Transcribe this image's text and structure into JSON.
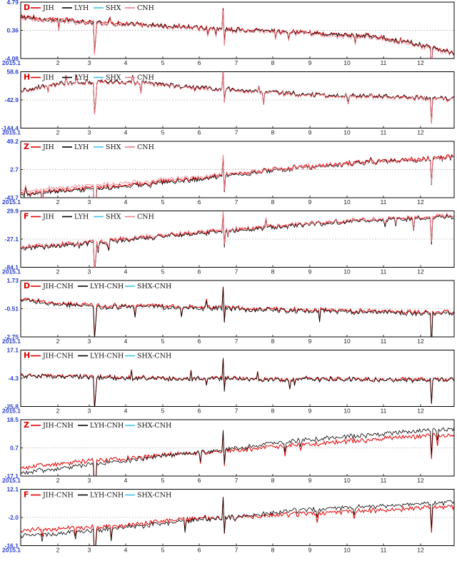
{
  "chart_data": [
    {
      "type": "line",
      "panel_label": "D",
      "x_tick_labels": [
        "2015.1",
        "2",
        "3",
        "4",
        "5",
        "6",
        "7",
        "8",
        "9",
        "10",
        "11",
        "12"
      ],
      "y_tick_labels": [
        "4.79",
        "0.36",
        "-4.08"
      ],
      "ylim": [
        -4.08,
        4.79
      ],
      "grid": "dashed-horizontal",
      "legend_placement": "top-left",
      "series": [
        {
          "name": "JIH",
          "color": "#e00000",
          "values": [
            2.6,
            2.2,
            2.0,
            1.9,
            1.7,
            1.5,
            1.2,
            1.1,
            0.9,
            0.7,
            0.6,
            0.4,
            0.3,
            0.1,
            -0.1,
            -0.2,
            -0.4,
            -0.5,
            -1.0,
            -1.6,
            -2.4,
            -3.2
          ]
        },
        {
          "name": "LYH",
          "color": "#000000",
          "values": [
            2.4,
            2.0,
            1.8,
            1.7,
            1.5,
            1.3,
            1.1,
            1.0,
            0.8,
            0.6,
            0.5,
            0.3,
            0.2,
            0.0,
            -0.2,
            -0.3,
            -0.5,
            -0.6,
            -1.1,
            -1.7,
            -2.5,
            -3.3
          ]
        },
        {
          "name": "SHX",
          "color": "#3ec3f0",
          "values": []
        },
        {
          "name": "CNH",
          "color": "#f07a85",
          "values": [
            2.2,
            1.9,
            1.7,
            1.5,
            1.4,
            1.2,
            1.0,
            0.8,
            0.7,
            0.5,
            0.3,
            0.2,
            0.0,
            -0.1,
            -0.3,
            -0.5,
            -0.7,
            -0.8,
            -1.3,
            -1.9,
            -2.7,
            -3.5
          ]
        }
      ]
    },
    {
      "type": "line",
      "panel_label": "H",
      "x_tick_labels": [
        "2015.1",
        "2",
        "3",
        "4",
        "5",
        "6",
        "7",
        "8",
        "9",
        "10",
        "11",
        "12"
      ],
      "y_tick_labels": [
        "58.6",
        "-42.9",
        "-144.4"
      ],
      "ylim": [
        -144.4,
        58.6
      ],
      "grid": "dashed-horizontal",
      "legend_placement": "top-left",
      "series": [
        {
          "name": "JIH",
          "color": "#e00000",
          "values": [
            -10,
            5,
            15,
            20,
            22,
            20,
            18,
            10,
            5,
            0,
            -5,
            -10,
            -15,
            -20,
            -25,
            -28,
            -30,
            -30,
            -33,
            -35,
            -38,
            -40
          ]
        },
        {
          "name": "LYH",
          "color": "#000000",
          "values": [
            -8,
            7,
            16,
            21,
            23,
            21,
            19,
            12,
            6,
            2,
            -4,
            -9,
            -14,
            -19,
            -24,
            -27,
            -29,
            -29,
            -32,
            -34,
            -37,
            -39
          ]
        },
        {
          "name": "SHX",
          "color": "#3ec3f0",
          "values": []
        },
        {
          "name": "CNH",
          "color": "#f07a85",
          "values": [
            -12,
            3,
            13,
            18,
            20,
            18,
            16,
            8,
            3,
            -2,
            -7,
            -12,
            -17,
            -22,
            -27,
            -30,
            -32,
            -32,
            -35,
            -37,
            -40,
            -42
          ]
        }
      ]
    },
    {
      "type": "line",
      "panel_label": "Z",
      "x_tick_labels": [
        "2015.1",
        "2",
        "3",
        "4",
        "5",
        "6",
        "7",
        "8",
        "9",
        "10",
        "11",
        "12"
      ],
      "y_tick_labels": [
        "49.2",
        "2.7",
        "-43.7"
      ],
      "ylim": [
        -43.7,
        49.2
      ],
      "grid": "dashed-horizontal",
      "legend_placement": "top-left",
      "series": [
        {
          "name": "JIH",
          "color": "#e00000",
          "values": [
            -37,
            -34,
            -31,
            -29,
            -26,
            -24,
            -20,
            -17,
            -14,
            -10,
            -6,
            -2,
            2,
            5,
            8,
            11,
            14,
            16,
            18,
            20,
            22,
            24
          ]
        },
        {
          "name": "LYH",
          "color": "#000000",
          "values": [
            -39,
            -36,
            -33,
            -31,
            -28,
            -26,
            -22,
            -19,
            -16,
            -12,
            -8,
            -4,
            0,
            3,
            6,
            9,
            12,
            14,
            16,
            18,
            20,
            22
          ]
        },
        {
          "name": "SHX",
          "color": "#3ec3f0",
          "values": []
        },
        {
          "name": "CNH",
          "color": "#f07a85",
          "values": [
            -33,
            -30,
            -27,
            -25,
            -22,
            -20,
            -17,
            -14,
            -11,
            -8,
            -5,
            -2,
            1,
            4,
            7,
            10,
            12,
            14,
            16,
            18,
            20,
            22
          ]
        }
      ]
    },
    {
      "type": "line",
      "panel_label": "F",
      "x_tick_labels": [
        "2015.1",
        "2",
        "3",
        "4",
        "5",
        "6",
        "7",
        "8",
        "9",
        "10",
        "11",
        "12"
      ],
      "y_tick_labels": [
        "29.9",
        "-27.1",
        "-84.1"
      ],
      "ylim": [
        -84.1,
        29.9
      ],
      "grid": "dashed-horizontal",
      "legend_placement": "top-left",
      "series": [
        {
          "name": "JIH",
          "color": "#e00000",
          "values": [
            -45,
            -42,
            -38,
            -35,
            -32,
            -28,
            -24,
            -20,
            -16,
            -12,
            -8,
            -5,
            -2,
            1,
            4,
            7,
            10,
            12,
            14,
            16,
            18,
            20
          ]
        },
        {
          "name": "LYH",
          "color": "#000000",
          "values": [
            -47,
            -44,
            -40,
            -37,
            -34,
            -30,
            -26,
            -22,
            -18,
            -14,
            -10,
            -7,
            -4,
            -1,
            2,
            5,
            8,
            10,
            12,
            14,
            16,
            18
          ]
        },
        {
          "name": "SHX",
          "color": "#3ec3f0",
          "values": []
        },
        {
          "name": "CNH",
          "color": "#f07a85",
          "values": [
            -43,
            -40,
            -36,
            -33,
            -30,
            -26,
            -22,
            -18,
            -14,
            -10,
            -7,
            -4,
            -1,
            2,
            5,
            8,
            11,
            13,
            15,
            17,
            19,
            21
          ]
        }
      ]
    },
    {
      "type": "line",
      "panel_label": "D",
      "x_tick_labels": [
        "2015.1",
        "2",
        "3",
        "4",
        "5",
        "6",
        "7",
        "8",
        "9",
        "10",
        "11",
        "12"
      ],
      "y_tick_labels": [
        "1.73",
        "-0.51",
        "-2.75"
      ],
      "ylim": [
        -2.75,
        1.73
      ],
      "grid": "dashed-horizontal",
      "legend_placement": "top-left",
      "series": [
        {
          "name": "JIH-CNH",
          "color": "#e00000",
          "values": [
            0.3,
            0.1,
            -0.1,
            -0.2,
            -0.3,
            -0.3,
            -0.2,
            -0.3,
            -0.3,
            -0.4,
            -0.4,
            -0.5,
            -0.5,
            -0.6,
            -0.6,
            -0.6,
            -0.7,
            -0.7,
            -0.7,
            -0.8,
            -0.8,
            -0.8
          ]
        },
        {
          "name": "LYH-CNH",
          "color": "#000000",
          "values": [
            0.2,
            0.0,
            -0.2,
            -0.3,
            -0.4,
            -0.4,
            -0.3,
            -0.4,
            -0.4,
            -0.5,
            -0.5,
            -0.6,
            -0.6,
            -0.7,
            -0.7,
            -0.7,
            -0.8,
            -0.8,
            -0.8,
            -0.9,
            -0.9,
            -0.9
          ]
        },
        {
          "name": "SHX-CNH",
          "color": "#3ec3f0",
          "values": []
        }
      ]
    },
    {
      "type": "line",
      "panel_label": "H",
      "x_tick_labels": [
        "2015.1",
        "2",
        "3",
        "4",
        "5",
        "6",
        "7",
        "8",
        "9",
        "10",
        "11",
        "12"
      ],
      "y_tick_labels": [
        "17.1",
        "-4.3",
        "-25.8"
      ],
      "ylim": [
        -25.8,
        17.1
      ],
      "grid": "dashed-horizontal",
      "legend_placement": "top-left",
      "series": [
        {
          "name": "JIH-CNH",
          "color": "#e00000",
          "values": [
            -2,
            -2.5,
            -3,
            -3,
            -3.5,
            -4,
            -4,
            -4.5,
            -4.5,
            -4,
            -4,
            -4.5,
            -5,
            -5,
            -5,
            -4.5,
            -4.5,
            -5,
            -5,
            -5.5,
            -5,
            -5
          ]
        },
        {
          "name": "LYH-CNH",
          "color": "#000000",
          "values": [
            -2.5,
            -3,
            -3.5,
            -3.5,
            -4,
            -4.5,
            -4.5,
            -5,
            -5,
            -4.5,
            -4.5,
            -5,
            -5.5,
            -5.5,
            -5.5,
            -5,
            -5,
            -5.5,
            -5.5,
            -6,
            -5.5,
            -5.5
          ]
        },
        {
          "name": "SHX-CNH",
          "color": "#3ec3f0",
          "values": []
        }
      ]
    },
    {
      "type": "line",
      "panel_label": "Z",
      "x_tick_labels": [
        "2015.1",
        "2",
        "3",
        "4",
        "5",
        "6",
        "7",
        "8",
        "9",
        "10",
        "11",
        "12"
      ],
      "y_tick_labels": [
        "18.5",
        "0.7",
        "-17.1"
      ],
      "ylim": [
        -17.1,
        18.5
      ],
      "grid": "dashed-horizontal",
      "legend_placement": "top-left",
      "series": [
        {
          "name": "JIH-CNH",
          "color": "#e00000",
          "values": [
            -12,
            -10.5,
            -9,
            -8,
            -7,
            -6,
            -5,
            -4,
            -3,
            -2,
            -1,
            0,
            1,
            2,
            3,
            4,
            5,
            6,
            7,
            8,
            8.5,
            9
          ]
        },
        {
          "name": "LYH-CNH",
          "color": "#000000",
          "values": [
            -15,
            -13.5,
            -12,
            -10.5,
            -9,
            -7.5,
            -6,
            -4.5,
            -3,
            -1.5,
            0,
            1.5,
            3,
            4.5,
            6,
            7,
            8,
            9,
            10,
            11,
            12,
            13
          ]
        },
        {
          "name": "SHX-CNH",
          "color": "#3ec3f0",
          "values": []
        }
      ]
    },
    {
      "type": "line",
      "panel_label": "F",
      "x_tick_labels": [
        "2015.1",
        "2",
        "3",
        "4",
        "5",
        "6",
        "7",
        "8",
        "9",
        "10",
        "11",
        "12"
      ],
      "y_tick_labels": [
        "12.1",
        "-2.0",
        "-16.1"
      ],
      "ylim": [
        -16.1,
        12.1
      ],
      "grid": "dashed-horizontal",
      "legend_placement": "top-left",
      "series": [
        {
          "name": "JIH-CNH",
          "color": "#e00000",
          "values": [
            -8.5,
            -8,
            -7.5,
            -7,
            -6.5,
            -6,
            -5,
            -4,
            -3,
            -2.5,
            -2,
            -1.5,
            -1,
            -0.5,
            0,
            0.5,
            1,
            1.5,
            2,
            2.5,
            3,
            3
          ]
        },
        {
          "name": "LYH-CNH",
          "color": "#000000",
          "values": [
            -11,
            -10.5,
            -10,
            -9,
            -8,
            -7,
            -6,
            -5,
            -4,
            -3,
            -2,
            -1,
            0,
            1,
            2,
            2.5,
            3,
            3.5,
            4,
            4.5,
            5,
            5.5
          ]
        },
        {
          "name": "SHX-CNH",
          "color": "#3ec3f0",
          "values": []
        }
      ]
    }
  ]
}
